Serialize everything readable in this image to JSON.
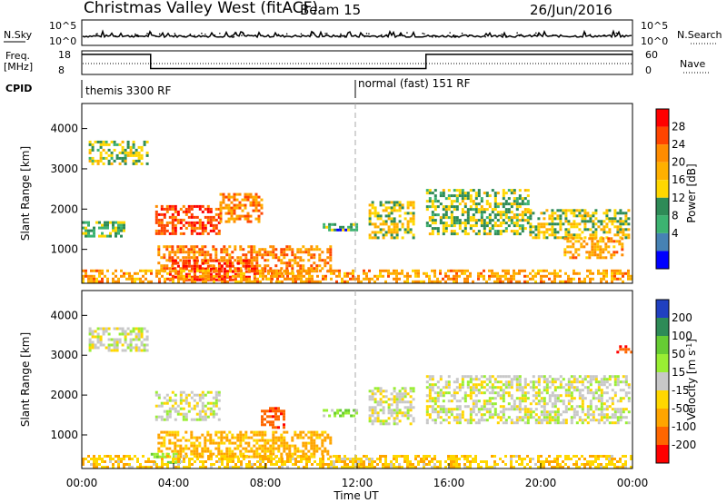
{
  "header": {
    "station": "Christmas Valley West (fitACF)",
    "beam": "Beam 15",
    "date": "26/Jun/2016"
  },
  "top_panels": {
    "nsky_label": "N.Sky",
    "nsky_ticks": [
      "10^5",
      "10^0"
    ],
    "nsearch_label": "N.Search",
    "nsearch_ticks": [
      "10^5",
      "10^0"
    ],
    "freq_label": "Freq.",
    "freq_unit": "[MHz]",
    "freq_ticks": [
      "18",
      "8"
    ],
    "nave_label": "Nave",
    "nave_ticks": [
      "60",
      "0"
    ],
    "cpid_label": "CPID",
    "cpid_modes": [
      "themis 3300 RF",
      "normal (fast) 151 RF"
    ]
  },
  "chart_data": [
    {
      "type": "line",
      "name": "frequency",
      "x_hours": [
        0,
        3,
        3,
        15,
        15,
        24
      ],
      "y_mhz": [
        16.5,
        16.5,
        10.5,
        10.5,
        16.5,
        16.5
      ],
      "ylim": [
        8,
        18
      ]
    },
    {
      "type": "heatmap",
      "name": "power",
      "xlabel": "Time UT",
      "ylabel": "Slant Range [km]",
      "xlim": [
        0,
        24
      ],
      "ylim": [
        180,
        4600
      ],
      "x_ticks": [
        "00:00",
        "04:00",
        "08:00",
        "12:00",
        "16:00",
        "20:00",
        "00:00"
      ],
      "y_ticks": [
        "1000",
        "2000",
        "3000",
        "4000"
      ],
      "colorbar": {
        "label": "Power [dB]",
        "ticks": [
          "28",
          "24",
          "20",
          "16",
          "12",
          "8",
          "4"
        ],
        "colors": [
          "#ff0000",
          "#ff4500",
          "#ff8c00",
          "#ffb000",
          "#ffd700",
          "#2e8b57",
          "#3cb371",
          "#4682b4",
          "#0000ff"
        ]
      },
      "regions": [
        {
          "t0": 0.3,
          "t1": 2.8,
          "r0": 3100,
          "r1": 3700,
          "level": 12
        },
        {
          "t0": 0.0,
          "t1": 1.8,
          "r0": 1300,
          "r1": 1700,
          "level": 10
        },
        {
          "t0": 3.2,
          "t1": 6.0,
          "r0": 1400,
          "r1": 2100,
          "level": 26
        },
        {
          "t0": 6.0,
          "t1": 7.8,
          "r0": 1700,
          "r1": 2400,
          "level": 22
        },
        {
          "t0": 3.3,
          "t1": 10.8,
          "r0": 450,
          "r1": 1100,
          "level": 22
        },
        {
          "t0": 3.8,
          "t1": 7.5,
          "r0": 250,
          "r1": 750,
          "level": 28
        },
        {
          "t0": 8.0,
          "t1": 9.5,
          "r0": 250,
          "r1": 500,
          "level": 24
        },
        {
          "t0": 10.5,
          "t1": 12.0,
          "r0": 1450,
          "r1": 1650,
          "level": 8
        },
        {
          "t0": 12.5,
          "t1": 14.5,
          "r0": 1300,
          "r1": 2200,
          "level": 14
        },
        {
          "t0": 15.0,
          "t1": 19.5,
          "r0": 1400,
          "r1": 2500,
          "level": 12
        },
        {
          "t0": 19.5,
          "t1": 23.8,
          "r0": 1300,
          "r1": 2000,
          "level": 14
        },
        {
          "t0": 21.0,
          "t1": 23.5,
          "r0": 800,
          "r1": 1300,
          "level": 20
        },
        {
          "t0": 0.0,
          "t1": 24.0,
          "r0": 180,
          "r1": 500,
          "level": 20
        }
      ]
    },
    {
      "type": "heatmap",
      "name": "velocity",
      "xlabel": "Time UT",
      "ylabel": "Slant Range [km]",
      "xlim": [
        0,
        24
      ],
      "ylim": [
        180,
        4600
      ],
      "x_ticks": [
        "00:00",
        "04:00",
        "08:00",
        "12:00",
        "16:00",
        "20:00",
        "00:00"
      ],
      "y_ticks": [
        "1000",
        "2000",
        "3000",
        "4000"
      ],
      "colorbar": {
        "label": "Velocity [m s-1]",
        "ticks": [
          "200",
          "100",
          "50",
          "15",
          "-15",
          "-50",
          "-100",
          "-200"
        ],
        "colors": [
          "#2040c0",
          "#2e8b57",
          "#66cc33",
          "#99ee33",
          "#c8c8c8",
          "#ffd700",
          "#ffa500",
          "#ff6600",
          "#ff0000"
        ]
      },
      "regions": [
        {
          "t0": 0.3,
          "t1": 2.8,
          "r0": 3100,
          "r1": 3700,
          "level": 0
        },
        {
          "t0": 3.2,
          "t1": 6.0,
          "r0": 1400,
          "r1": 2100,
          "level": 0
        },
        {
          "t0": 3.3,
          "t1": 10.8,
          "r0": 450,
          "r1": 1100,
          "level": -60
        },
        {
          "t0": 3.0,
          "t1": 4.3,
          "r0": 320,
          "r1": 550,
          "level": 40
        },
        {
          "t0": 7.8,
          "t1": 8.8,
          "r0": 1200,
          "r1": 1700,
          "level": -180
        },
        {
          "t0": 10.5,
          "t1": 12.0,
          "r0": 1450,
          "r1": 1650,
          "level": 40
        },
        {
          "t0": 12.5,
          "t1": 14.5,
          "r0": 1300,
          "r1": 2200,
          "level": 0
        },
        {
          "t0": 15.0,
          "t1": 23.8,
          "r0": 1300,
          "r1": 2500,
          "level": 0
        },
        {
          "t0": 0.0,
          "t1": 24.0,
          "r0": 180,
          "r1": 500,
          "level": -40
        },
        {
          "t0": 23.3,
          "t1": 24.0,
          "r0": 3050,
          "r1": 3250,
          "level": -190
        }
      ]
    }
  ]
}
